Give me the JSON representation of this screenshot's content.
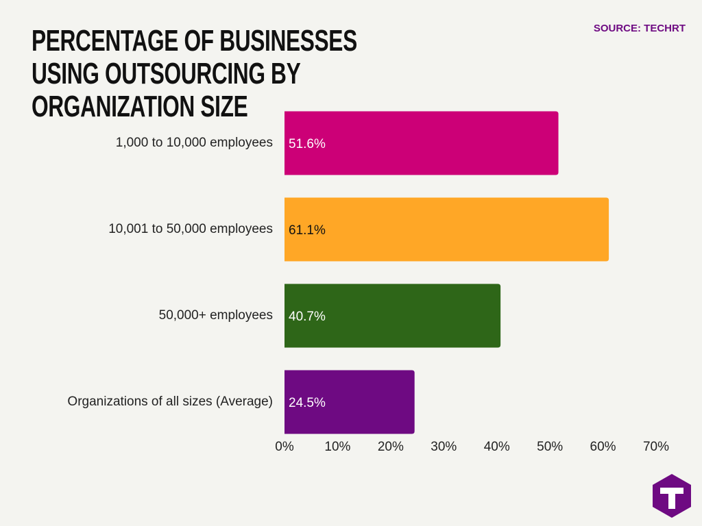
{
  "chart_data": {
    "type": "hbar",
    "title": "PERCENTAGE OF BUSINESSES USING OUTSOURCING BY ORGANIZATION SIZE",
    "source": "SOURCE: TECHRT",
    "categories": [
      "1,000 to 10,000 employees",
      "10,001 to 50,000 employees",
      "50,000+ employees",
      "Organizations of all sizes (Average)"
    ],
    "values": [
      51.6,
      61.1,
      40.7,
      24.5
    ],
    "value_labels": [
      "51.6%",
      "61.1%",
      "40.7%",
      "24.5%"
    ],
    "colors": [
      "#cc0077",
      "#ffa726",
      "#2e6618",
      "#6e0a82"
    ],
    "xlim": [
      0,
      70
    ],
    "xticks": [
      {
        "value": 0,
        "label": "0%"
      },
      {
        "value": 10,
        "label": "10%"
      },
      {
        "value": 20,
        "label": "20%"
      },
      {
        "value": 30,
        "label": "30%"
      },
      {
        "value": 40,
        "label": "40%"
      },
      {
        "value": 50,
        "label": "50%"
      },
      {
        "value": 60,
        "label": "60%"
      },
      {
        "value": 70,
        "label": "70%"
      }
    ],
    "grid": false
  }
}
